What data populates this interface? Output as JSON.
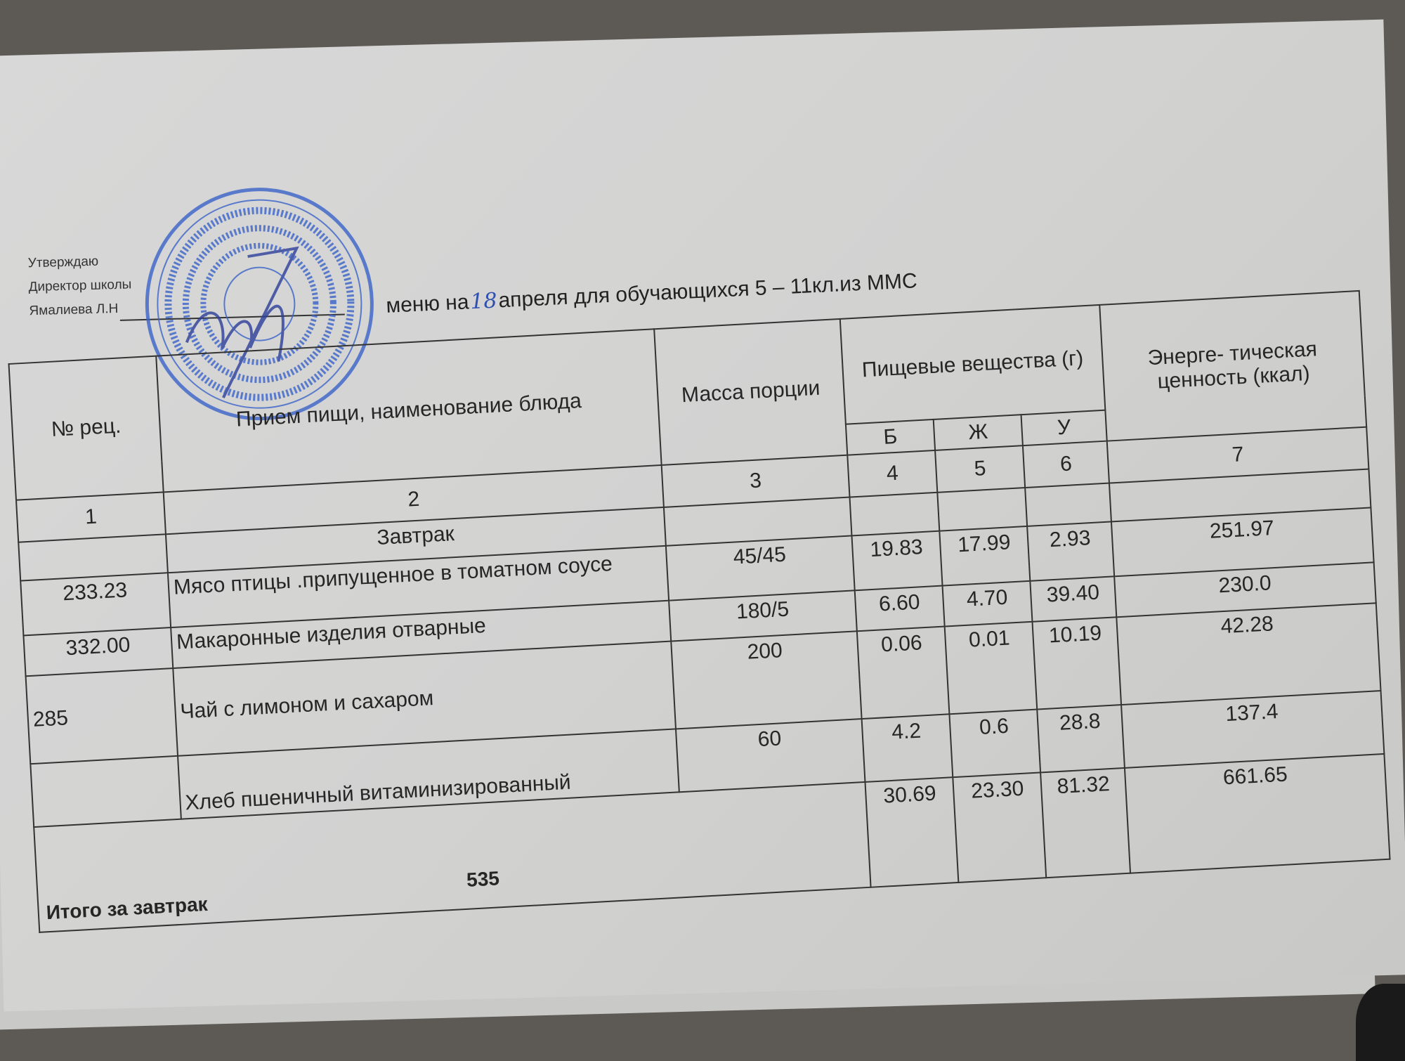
{
  "approval": {
    "line1": "Утверждаю",
    "line2": "Директор школы",
    "line3": "Ямалиева Л.Н"
  },
  "title": {
    "prefix": "меню на",
    "date_handwritten": "18",
    "suffix": "апреля для обучающихся 5 – 11кл.из ММС"
  },
  "stamp": {
    "color": "#3a63c8",
    "type": "round-seal"
  },
  "table": {
    "headers": {
      "recipe_no": "№ рец.",
      "dish": "Прием пищи, наименование блюда",
      "mass": "Масса порции",
      "nutrients": "Пищевые вещества (г)",
      "protein": "Б",
      "fat": "Ж",
      "carbs": "У",
      "energy": "Энерге- тическая ценность (ккал)"
    },
    "column_numbers": [
      "1",
      "2",
      "3",
      "4",
      "5",
      "6",
      "7"
    ],
    "section": "Завтрак",
    "rows": [
      {
        "no": "233.23",
        "dish": "Мясо птицы .припущенное в томатном соусе",
        "mass": "45/45",
        "b": "19.83",
        "zh": "17.99",
        "u": "2.93",
        "kcal": "251.97"
      },
      {
        "no": "332.00",
        "dish": "Макаронные изделия отварные",
        "mass": "180/5",
        "b": "6.60",
        "zh": "4.70",
        "u": "39.40",
        "kcal": "230.0"
      },
      {
        "no": "285",
        "dish": "Чай с лимоном и сахаром",
        "mass": "200",
        "b": "0.06",
        "zh": "0.01",
        "u": "10.19",
        "kcal": "42.28"
      },
      {
        "no": "",
        "dish": "Хлеб пшеничный витаминизированный",
        "mass": "60",
        "b": "4.2",
        "zh": "0.6",
        "u": "28.8",
        "kcal": "137.4"
      }
    ],
    "total": {
      "label": "Итого за завтрак",
      "mass": "535",
      "b": "30.69",
      "zh": "23.30",
      "u": "81.32",
      "kcal": "661.65"
    }
  }
}
